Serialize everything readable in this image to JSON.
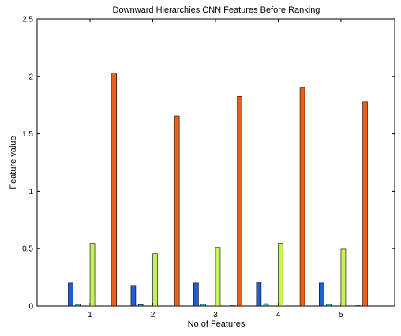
{
  "chart_data": {
    "type": "bar",
    "title": "Downward Hierarchies CNN Features Before Ranking",
    "xlabel": "No of Features",
    "ylabel": "Feature value",
    "categories": [
      "1",
      "2",
      "3",
      "4",
      "5"
    ],
    "ylim": [
      0,
      2.5
    ],
    "yticks": [
      0,
      0.5,
      1,
      1.5,
      2,
      2.5
    ],
    "ytick_labels": [
      "0",
      "0.5",
      "1",
      "1.5",
      "2",
      "2.5"
    ],
    "grid": false,
    "series": [
      {
        "values": [
          0.2,
          0.18,
          0.2,
          0.21,
          0.2
        ],
        "color": "#1f5fd6"
      },
      {
        "values": [
          0.015,
          0.012,
          0.015,
          0.02,
          0.015
        ],
        "color": "#2fb5c8"
      },
      {
        "values": [
          0.0,
          0.0,
          0.0,
          0.0,
          0.0
        ],
        "color": "#7ad07a"
      },
      {
        "values": [
          0.545,
          0.455,
          0.51,
          0.545,
          0.495
        ],
        "color": "#c6f25a"
      },
      {
        "values": [
          0.0,
          0.0,
          0.0,
          0.0,
          0.0
        ],
        "color": "#f0c040"
      },
      {
        "values": [
          0.0,
          0.0,
          0.003,
          0.0,
          0.003
        ],
        "color": "#e07030"
      },
      {
        "values": [
          2.03,
          1.655,
          1.825,
          1.905,
          1.78
        ],
        "color": "#e8601c"
      }
    ]
  }
}
